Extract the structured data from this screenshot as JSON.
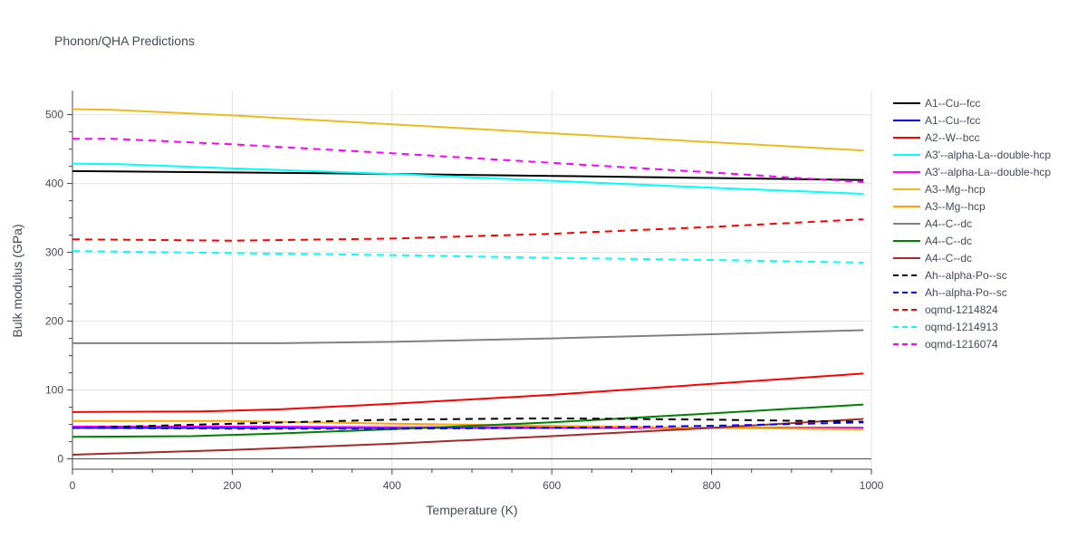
{
  "chart_data": {
    "type": "line",
    "title": "Phonon/QHA Predictions",
    "xlabel": "Temperature (K)",
    "ylabel": "Bulk modulus (GPa)",
    "xlim": [
      0,
      1000
    ],
    "ylim": [
      -15,
      535
    ],
    "xticks": [
      0,
      200,
      400,
      600,
      800,
      1000
    ],
    "yticks": [
      0,
      100,
      200,
      300,
      400,
      500
    ],
    "grid": true,
    "legend_position": "right",
    "series": [
      {
        "name": "A1--Cu--fcc",
        "color": "#000000",
        "dash": "solid",
        "x": [
          0,
          200,
          400,
          600,
          800,
          990
        ],
        "y": [
          418,
          416,
          414,
          411,
          408,
          405
        ]
      },
      {
        "name": "A1--Cu--fcc",
        "color": "#0000ff",
        "dash": "solid",
        "x": [
          0,
          200,
          400,
          600,
          800,
          990
        ],
        "y": [
          45,
          45,
          45,
          45,
          45,
          45
        ]
      },
      {
        "name": "A2--W--bcc",
        "color": "#ff0000",
        "dash": "solid",
        "x": [
          0,
          160,
          260,
          400,
          600,
          800,
          990
        ],
        "y": [
          68,
          69,
          72,
          80,
          93,
          109,
          124
        ]
      },
      {
        "name": "A3'--alpha-La--double-hcp",
        "color": "#00ffff",
        "dash": "solid",
        "x": [
          0,
          60,
          200,
          400,
          600,
          800,
          990
        ],
        "y": [
          429,
          428,
          422,
          414,
          404,
          394,
          385
        ]
      },
      {
        "name": "A3'--alpha-La--double-hcp",
        "color": "#ff00ff",
        "dash": "solid",
        "x": [
          0,
          200,
          400,
          600,
          800,
          990
        ],
        "y": [
          47,
          47,
          46,
          46,
          45,
          44
        ]
      },
      {
        "name": "A3--Mg--hcp",
        "color": "#ebbb1f",
        "dash": "solid",
        "x": [
          0,
          50,
          200,
          400,
          600,
          800,
          990
        ],
        "y": [
          508,
          507,
          499,
          486,
          473,
          460,
          448
        ]
      },
      {
        "name": "A3--Mg--hcp",
        "color": "#ffa500",
        "dash": "solid",
        "x": [
          0,
          200,
          400,
          600,
          800,
          990
        ],
        "y": [
          55,
          55,
          51,
          48,
          45,
          43
        ]
      },
      {
        "name": "A4--C--dc",
        "color": "#808080",
        "dash": "solid",
        "x": [
          0,
          260,
          400,
          600,
          800,
          990
        ],
        "y": [
          168,
          168,
          170,
          175,
          181,
          187
        ]
      },
      {
        "name": "A4--C--dc",
        "color": "#008000",
        "dash": "solid",
        "x": [
          0,
          150,
          260,
          400,
          600,
          800,
          990
        ],
        "y": [
          32,
          33,
          37,
          43,
          53,
          66,
          79
        ]
      },
      {
        "name": "A4--C--dc",
        "color": "#a52a2a",
        "dash": "solid",
        "x": [
          0,
          200,
          400,
          600,
          800,
          990
        ],
        "y": [
          6,
          13,
          22,
          33,
          45,
          58
        ]
      },
      {
        "name": "Ah--alpha-Po--sc",
        "color": "#000000",
        "dash": "dash",
        "x": [
          0,
          200,
          400,
          600,
          800,
          990
        ],
        "y": [
          45,
          51,
          57,
          59,
          57,
          54
        ]
      },
      {
        "name": "Ah--alpha-Po--sc",
        "color": "#0000ff",
        "dash": "dash",
        "x": [
          0,
          200,
          400,
          600,
          800,
          990
        ],
        "y": [
          45,
          44,
          44,
          45,
          48,
          53
        ]
      },
      {
        "name": "oqmd-1214824",
        "color": "#ff0000",
        "dash": "dash",
        "x": [
          0,
          200,
          400,
          600,
          800,
          990
        ],
        "y": [
          319,
          317,
          320,
          327,
          337,
          348
        ]
      },
      {
        "name": "oqmd-1214913",
        "color": "#00ffff",
        "dash": "dash",
        "x": [
          0,
          200,
          400,
          600,
          800,
          990
        ],
        "y": [
          302,
          299,
          296,
          292,
          289,
          285
        ]
      },
      {
        "name": "oqmd-1216074",
        "color": "#ff00ff",
        "dash": "dash",
        "x": [
          0,
          50,
          200,
          400,
          600,
          800,
          990
        ],
        "y": [
          465,
          465,
          457,
          444,
          430,
          416,
          402
        ]
      }
    ]
  }
}
